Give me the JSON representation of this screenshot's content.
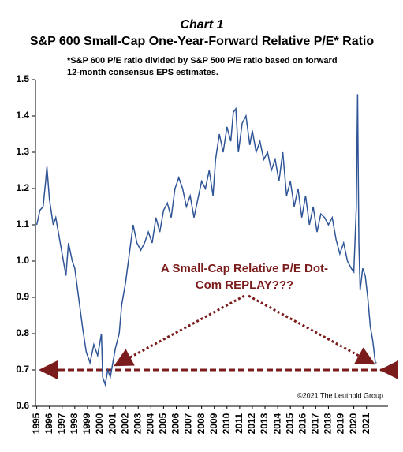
{
  "chart_data": {
    "type": "line",
    "chart_label": "Chart 1",
    "title": "S&P 600 Small-Cap One-Year-Forward Relative P/E* Ratio",
    "subtitle": "*S&P 600 P/E ratio divided by S&P 500 P/E ratio based on forward 12-month consensus EPS estimates.",
    "annotation": "A Small-Cap Relative P/E Dot-Com REPLAY???",
    "source": "©2021 The Leuthold Group",
    "x": [
      1995.0,
      1995.25,
      1995.5,
      1995.7,
      1995.8,
      1996.0,
      1996.3,
      1996.5,
      1996.8,
      1997.0,
      1997.3,
      1997.5,
      1997.8,
      1998.0,
      1998.3,
      1998.6,
      1998.9,
      1999.2,
      1999.5,
      1999.8,
      2000.1,
      2000.2,
      2000.4,
      2000.6,
      2000.8,
      2001.0,
      2001.2,
      2001.5,
      2001.7,
      2002.0,
      2002.3,
      2002.6,
      2002.9,
      2003.2,
      2003.5,
      2003.8,
      2004.1,
      2004.4,
      2004.7,
      2005.0,
      2005.3,
      2005.6,
      2005.9,
      2006.2,
      2006.5,
      2006.8,
      2007.1,
      2007.4,
      2007.7,
      2008.0,
      2008.3,
      2008.6,
      2008.9,
      2009.1,
      2009.4,
      2009.7,
      2010.0,
      2010.3,
      2010.5,
      2010.7,
      2010.9,
      2011.2,
      2011.5,
      2011.8,
      2012.0,
      2012.3,
      2012.6,
      2012.9,
      2013.2,
      2013.5,
      2013.8,
      2014.1,
      2014.4,
      2014.7,
      2015.0,
      2015.3,
      2015.6,
      2015.9,
      2016.2,
      2016.5,
      2016.8,
      2017.1,
      2017.4,
      2017.7,
      2018.0,
      2018.3,
      2018.6,
      2018.9,
      2019.2,
      2019.5,
      2019.8,
      2020.0,
      2020.2,
      2020.3,
      2020.4,
      2020.5,
      2020.7,
      2020.9,
      2021.1,
      2021.3,
      2021.5,
      2021.7,
      2021.8
    ],
    "series": [
      {
        "name": "Relative P/E",
        "color": "#2f5597",
        "values": [
          1.1,
          1.14,
          1.15,
          1.22,
          1.26,
          1.17,
          1.1,
          1.12,
          1.06,
          1.02,
          0.96,
          1.05,
          1.0,
          0.98,
          0.9,
          0.82,
          0.75,
          0.72,
          0.77,
          0.74,
          0.8,
          0.68,
          0.66,
          0.7,
          0.68,
          0.72,
          0.76,
          0.8,
          0.88,
          0.94,
          1.02,
          1.1,
          1.05,
          1.03,
          1.05,
          1.08,
          1.05,
          1.12,
          1.08,
          1.14,
          1.16,
          1.12,
          1.2,
          1.23,
          1.2,
          1.15,
          1.18,
          1.12,
          1.17,
          1.22,
          1.2,
          1.25,
          1.18,
          1.28,
          1.35,
          1.3,
          1.37,
          1.33,
          1.41,
          1.42,
          1.3,
          1.38,
          1.4,
          1.32,
          1.36,
          1.3,
          1.33,
          1.28,
          1.3,
          1.25,
          1.28,
          1.22,
          1.3,
          1.18,
          1.22,
          1.15,
          1.2,
          1.12,
          1.18,
          1.1,
          1.15,
          1.08,
          1.13,
          1.12,
          1.1,
          1.12,
          1.06,
          1.02,
          1.05,
          1.0,
          0.98,
          0.97,
          1.15,
          1.46,
          1.05,
          0.92,
          0.98,
          0.96,
          0.9,
          0.82,
          0.78,
          0.72,
          0.72
        ]
      }
    ],
    "xlim": [
      1994.9,
      2022.7
    ],
    "xticks": [
      1995,
      1996,
      1997,
      1998,
      1999,
      2000,
      2001,
      2002,
      2003,
      2004,
      2005,
      2006,
      2007,
      2008,
      2009,
      2010,
      2011,
      2012,
      2013,
      2014,
      2015,
      2016,
      2017,
      2018,
      2019,
      2020,
      2021
    ],
    "ylim": [
      0.6,
      1.5
    ],
    "yticks": [
      0.6,
      0.7,
      0.8,
      0.9,
      {
        "value": 1.0,
        "label": "1.0"
      },
      1.1,
      1.2,
      1.3,
      1.4,
      1.5
    ]
  }
}
